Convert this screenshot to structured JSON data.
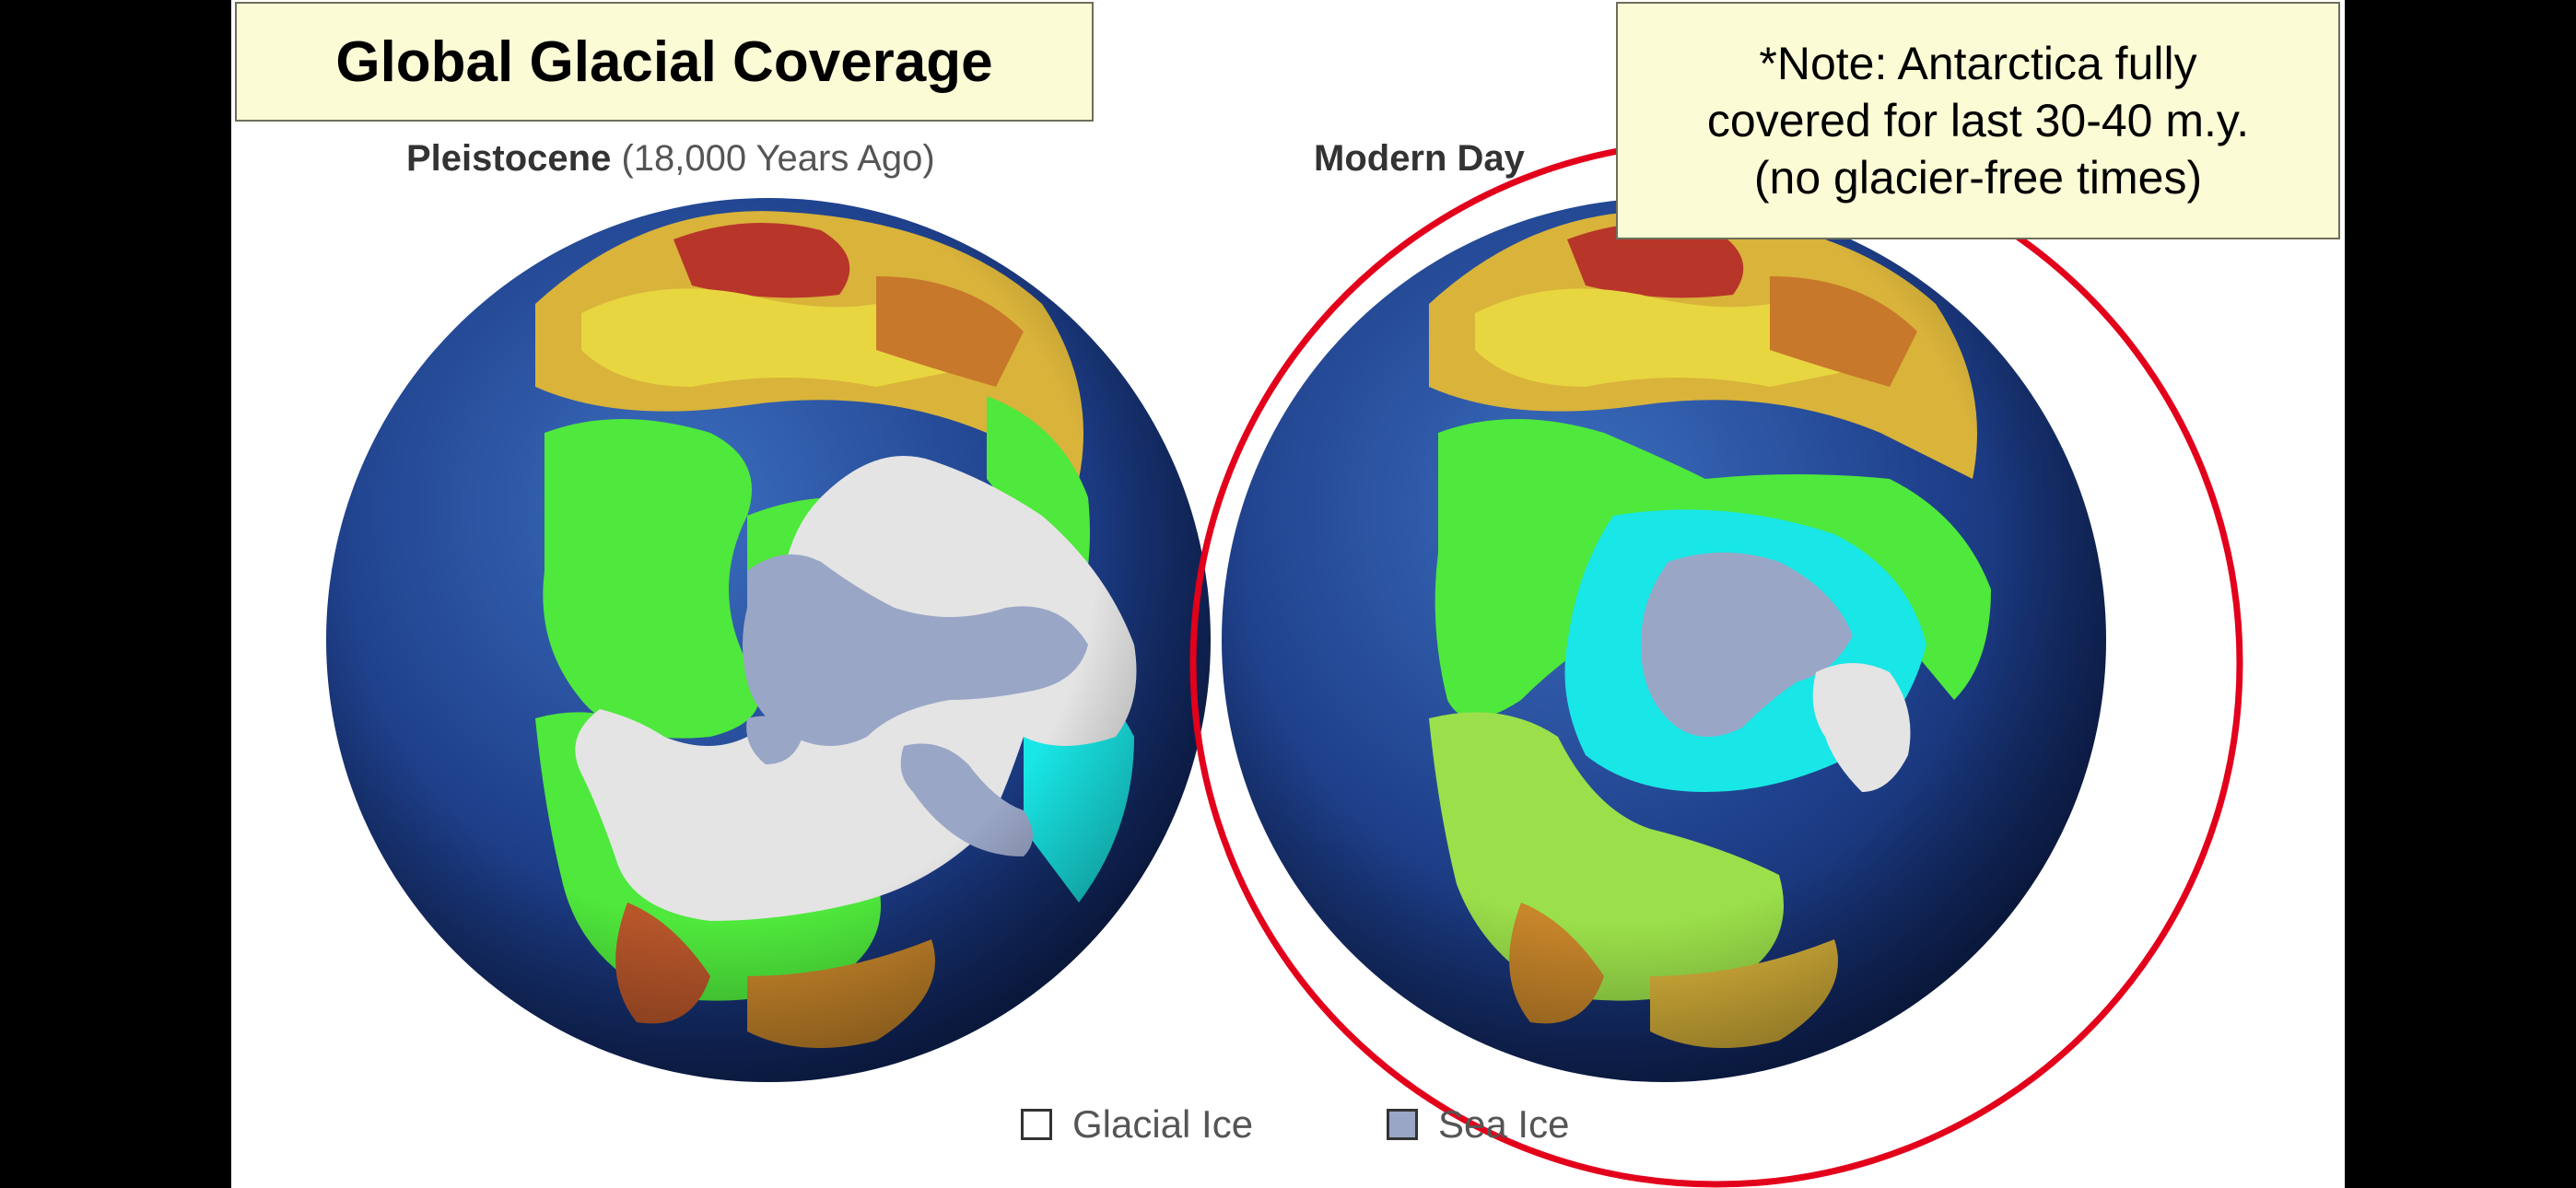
{
  "title": "Global Glacial Coverage",
  "note": {
    "line1": "*Note: Antarctica fully",
    "line2": "covered for last 30-40 m.y.",
    "line3": "(no glacier-free times)"
  },
  "globes": {
    "left": {
      "label_bold": "Pleistocene",
      "label_rest": " (18,000 Years Ago)"
    },
    "right": {
      "label_bold": "Modern Day"
    }
  },
  "legend": {
    "glacial_ice": "Glacial Ice",
    "sea_ice": "Sea Ice"
  },
  "colors": {
    "ocean": "#1e3f8a",
    "glacial_ice": "#e4e4e4",
    "sea_ice": "#9aa6c6",
    "land_green": "#4fe83c",
    "land_cyan": "#19e6e6",
    "highlight_circle": "#e3001b",
    "callout_background": "#fbfbd5"
  }
}
